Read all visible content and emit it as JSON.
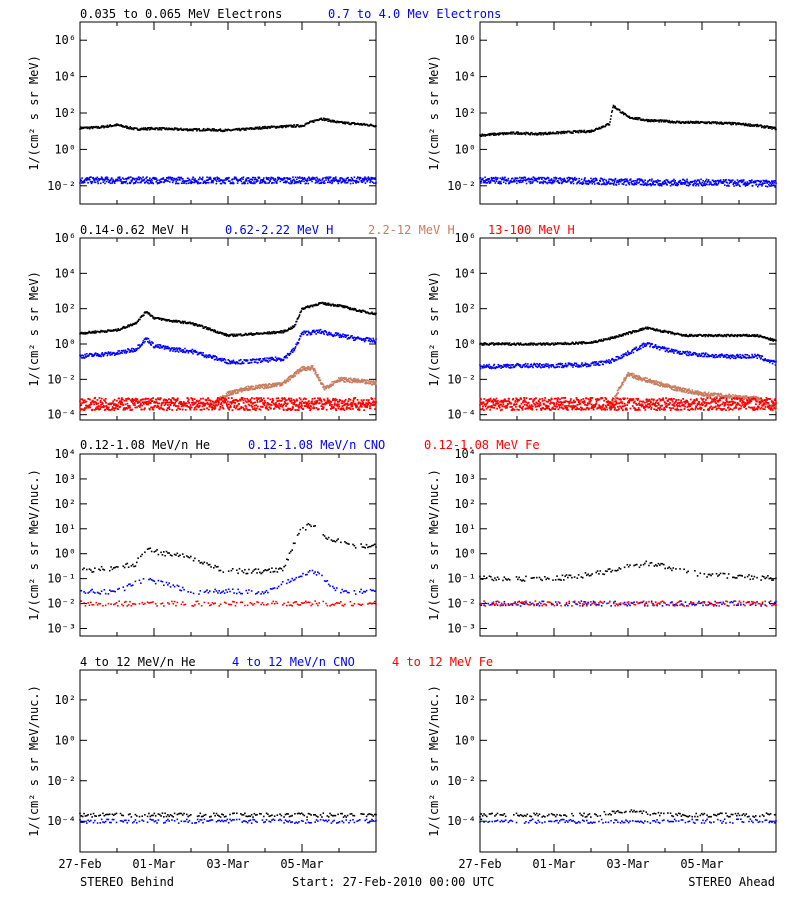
{
  "footer": {
    "left_tag": "STEREO Behind",
    "right_tag": "STEREO Ahead",
    "start": "Start: 27-Feb-2010 00:00 UTC"
  },
  "x_tick_labels": [
    "27-Feb",
    "01-Mar",
    "03-Mar",
    "05-Mar"
  ],
  "colors": {
    "black": "#000000",
    "blue": "#0000ff",
    "brown": "#c87d60",
    "red": "#ff0000",
    "background": "#ffffff"
  },
  "rows": [
    {
      "legend": [
        {
          "text": "0.035 to 0.065 MeV Electrons",
          "color": "#000000"
        },
        {
          "text": "0.7 to 4.0 Mev Electrons",
          "color": "#0000ff"
        }
      ],
      "ylabel": "1/(cm² s sr MeV)",
      "ticks": [
        {
          "exp": -2,
          "label": "10⁻²"
        },
        {
          "exp": 0,
          "label": "10⁰"
        },
        {
          "exp": 2,
          "label": "10²"
        },
        {
          "exp": 4,
          "label": "10⁴"
        },
        {
          "exp": 6,
          "label": "10⁶"
        }
      ]
    },
    {
      "legend": [
        {
          "text": "0.14-0.62 MeV H",
          "color": "#000000"
        },
        {
          "text": "0.62-2.22 MeV H",
          "color": "#0000ff"
        },
        {
          "text": "2.2-12 MeV H",
          "color": "#c87d60"
        },
        {
          "text": "13-100 MeV H",
          "color": "#ff0000"
        }
      ],
      "ylabel": "1/(cm² s sr MeV)",
      "ticks": [
        {
          "exp": -4,
          "label": "10⁻⁴"
        },
        {
          "exp": -2,
          "label": "10⁻²"
        },
        {
          "exp": 0,
          "label": "10⁰"
        },
        {
          "exp": 2,
          "label": "10²"
        },
        {
          "exp": 4,
          "label": "10⁴"
        },
        {
          "exp": 6,
          "label": "10⁶"
        }
      ]
    },
    {
      "legend": [
        {
          "text": "0.12-1.08 MeV/n He",
          "color": "#000000"
        },
        {
          "text": "0.12-1.08 MeV/n CNO",
          "color": "#0000ff"
        },
        {
          "text": "0.12-1.08 MeV Fe",
          "color": "#ff0000"
        }
      ],
      "ylabel": "1/(cm² s sr MeV/nuc.)",
      "ticks": [
        {
          "exp": -3,
          "label": "10⁻³"
        },
        {
          "exp": -2,
          "label": "10⁻²"
        },
        {
          "exp": -1,
          "label": "10⁻¹"
        },
        {
          "exp": 0,
          "label": "10⁰"
        },
        {
          "exp": 1,
          "label": "10¹"
        },
        {
          "exp": 2,
          "label": "10²"
        },
        {
          "exp": 3,
          "label": "10³"
        },
        {
          "exp": 4,
          "label": "10⁴"
        }
      ]
    },
    {
      "legend": [
        {
          "text": "4 to 12 MeV/n He",
          "color": "#000000"
        },
        {
          "text": "4 to 12 MeV/n CNO",
          "color": "#0000ff"
        },
        {
          "text": "4 to 12 MeV Fe",
          "color": "#ff0000"
        }
      ],
      "ylabel": "1/(cm² s sr MeV/nuc.)",
      "ticks": [
        {
          "exp": -4,
          "label": "10⁻⁴"
        },
        {
          "exp": -2,
          "label": "10⁻²"
        },
        {
          "exp": 0,
          "label": "10⁰"
        },
        {
          "exp": 2,
          "label": "10²"
        }
      ]
    }
  ],
  "chart_data": [
    {
      "type": "scatter",
      "spacecraft": "STEREO Behind",
      "y_scale": "log",
      "ylim": [
        0.001,
        10000000
      ],
      "x_unit": "days from 27-Feb-2010 00:00 UTC",
      "xlim": [
        0,
        8
      ],
      "series": [
        {
          "name": "0.035 to 0.065 MeV Electrons",
          "color": "#000000",
          "x": [
            0,
            0.5,
            1,
            1.5,
            2,
            2.5,
            3,
            3.5,
            4,
            4.5,
            5,
            5.5,
            6,
            6.5,
            7,
            7.5,
            8
          ],
          "y": [
            15,
            16,
            22,
            13,
            14,
            13,
            12,
            12,
            11,
            13,
            16,
            18,
            20,
            50,
            30,
            25,
            20
          ]
        },
        {
          "name": "0.7 to 4.0 Mev Electrons",
          "color": "#0000ff",
          "x": [
            0,
            1,
            2,
            3,
            4,
            5,
            6,
            7,
            8
          ],
          "y": [
            0.02,
            0.02,
            0.02,
            0.02,
            0.02,
            0.02,
            0.02,
            0.02,
            0.02
          ]
        }
      ]
    },
    {
      "type": "scatter",
      "spacecraft": "STEREO Ahead",
      "y_scale": "log",
      "ylim": [
        0.001,
        10000000
      ],
      "x_unit": "days from 27-Feb-2010 00:00 UTC",
      "xlim": [
        0,
        8
      ],
      "series": [
        {
          "name": "0.035 to 0.065 MeV Electrons",
          "color": "#000000",
          "x": [
            0,
            0.5,
            1,
            1.5,
            2,
            2.5,
            3,
            3.5,
            3.6,
            4,
            4.5,
            5,
            5.5,
            6,
            6.5,
            7,
            7.5,
            8
          ],
          "y": [
            6,
            7,
            8,
            7,
            8,
            9,
            10,
            25,
            250,
            60,
            40,
            35,
            30,
            30,
            28,
            25,
            20,
            14
          ]
        },
        {
          "name": "0.7 to 4.0 Mev Electrons",
          "color": "#0000ff",
          "x": [
            0,
            1,
            2,
            3,
            4,
            5,
            6,
            7,
            8
          ],
          "y": [
            0.02,
            0.02,
            0.02,
            0.018,
            0.016,
            0.015,
            0.015,
            0.014,
            0.013
          ]
        }
      ]
    },
    {
      "type": "scatter",
      "spacecraft": "STEREO Behind",
      "y_scale": "log",
      "ylim": [
        5e-05,
        1000000
      ],
      "x_unit": "days from 27-Feb-2010 00:00 UTC",
      "xlim": [
        0,
        8
      ],
      "series": [
        {
          "name": "0.14-0.62 MeV H",
          "color": "#000000",
          "x": [
            0,
            0.5,
            1,
            1.5,
            1.8,
            2,
            2.5,
            3,
            3.5,
            4,
            4.5,
            5,
            5.5,
            5.8,
            6,
            6.5,
            7,
            7.5,
            8
          ],
          "y": [
            4,
            5,
            6,
            15,
            70,
            30,
            20,
            15,
            7,
            3,
            3.5,
            4,
            5,
            10,
            100,
            200,
            150,
            80,
            50
          ]
        },
        {
          "name": "0.62-2.22 MeV H",
          "color": "#0000ff",
          "x": [
            0,
            0.5,
            1,
            1.5,
            1.8,
            2,
            2.5,
            3,
            3.5,
            4,
            4.5,
            5,
            5.5,
            5.8,
            6,
            6.5,
            7,
            7.5,
            8
          ],
          "y": [
            0.2,
            0.25,
            0.3,
            0.5,
            2,
            0.8,
            0.5,
            0.4,
            0.2,
            0.1,
            0.1,
            0.12,
            0.15,
            0.5,
            4,
            5,
            3,
            2,
            1.5
          ]
        },
        {
          "name": "2.2-12 MeV H",
          "color": "#c87d60",
          "x": [
            3.5,
            4,
            4.5,
            5,
            5.5,
            6,
            6.3,
            6.6,
            7,
            7.5,
            8
          ],
          "y": [
            0.0003,
            0.0015,
            0.003,
            0.004,
            0.006,
            0.04,
            0.045,
            0.003,
            0.01,
            0.008,
            0.006
          ]
        },
        {
          "name": "13-100 MeV H",
          "color": "#ff0000",
          "x": [
            0,
            2,
            4,
            6,
            8
          ],
          "y": [
            0.0004,
            0.0004,
            0.0004,
            0.0004,
            0.0004
          ]
        }
      ]
    },
    {
      "type": "scatter",
      "spacecraft": "STEREO Ahead",
      "y_scale": "log",
      "ylim": [
        5e-05,
        1000000
      ],
      "x_unit": "days from 27-Feb-2010 00:00 UTC",
      "xlim": [
        0,
        8
      ],
      "series": [
        {
          "name": "0.14-0.62 MeV H",
          "color": "#000000",
          "x": [
            0,
            1,
            2,
            3,
            3.5,
            4,
            4.5,
            5,
            5.5,
            6,
            6.5,
            7,
            7.5,
            8
          ],
          "y": [
            1,
            1,
            1,
            1.2,
            2,
            4,
            8,
            5,
            3,
            3,
            3,
            3,
            3,
            1.5
          ]
        },
        {
          "name": "0.62-2.22 MeV H",
          "color": "#0000ff",
          "x": [
            0,
            1,
            2,
            3,
            3.5,
            4,
            4.5,
            5,
            5.5,
            6,
            6.5,
            7,
            7.5,
            8
          ],
          "y": [
            0.05,
            0.06,
            0.06,
            0.07,
            0.1,
            0.3,
            1,
            0.5,
            0.3,
            0.25,
            0.2,
            0.2,
            0.2,
            0.08
          ]
        },
        {
          "name": "2.2-12 MeV H",
          "color": "#c87d60",
          "x": [
            3.5,
            3.8,
            4,
            4.3,
            4.8,
            5.3,
            6,
            6.5,
            7,
            7.5,
            8
          ],
          "y": [
            0.0002,
            0.004,
            0.02,
            0.012,
            0.006,
            0.003,
            0.0015,
            0.0012,
            0.001,
            0.0008,
            0.0002
          ]
        },
        {
          "name": "13-100 MeV H",
          "color": "#ff0000",
          "x": [
            0,
            2,
            4,
            6,
            8
          ],
          "y": [
            0.0004,
            0.0004,
            0.0004,
            0.0004,
            0.0004
          ]
        }
      ]
    },
    {
      "type": "scatter",
      "spacecraft": "STEREO Behind",
      "y_scale": "log",
      "ylim": [
        0.0005,
        10000
      ],
      "x_unit": "days from 27-Feb-2010 00:00 UTC",
      "xlim": [
        0,
        8
      ],
      "series": [
        {
          "name": "0.12-1.08 MeV/n He",
          "color": "#000000",
          "x": [
            0,
            0.5,
            1,
            1.5,
            1.8,
            2,
            2.5,
            3,
            3.5,
            4,
            4.5,
            5,
            5.5,
            5.8,
            6,
            6.3,
            6.6,
            7,
            7.5,
            8
          ],
          "y": [
            0.2,
            0.25,
            0.25,
            0.4,
            1.5,
            1.2,
            0.9,
            0.7,
            0.3,
            0.2,
            0.2,
            0.2,
            0.25,
            3,
            10,
            15,
            5,
            3,
            2,
            2
          ]
        },
        {
          "name": "0.12-1.08 MeV/n CNO",
          "color": "#0000ff",
          "x": [
            0,
            1,
            1.8,
            2,
            2.5,
            3,
            4,
            5,
            6,
            6.3,
            6.6,
            7,
            8
          ],
          "y": [
            0.03,
            0.03,
            0.1,
            0.08,
            0.05,
            0.03,
            0.03,
            0.03,
            0.15,
            0.2,
            0.1,
            0.03,
            0.03
          ]
        },
        {
          "name": "0.12-1.08 MeV Fe",
          "color": "#ff0000",
          "x": [
            0,
            2,
            4,
            6,
            8
          ],
          "y": [
            0.01,
            0.01,
            0.01,
            0.01,
            0.01
          ]
        }
      ]
    },
    {
      "type": "scatter",
      "spacecraft": "STEREO Ahead",
      "y_scale": "log",
      "ylim": [
        0.0005,
        10000
      ],
      "x_unit": "days from 27-Feb-2010 00:00 UTC",
      "xlim": [
        0,
        8
      ],
      "series": [
        {
          "name": "0.12-1.08 MeV/n He",
          "color": "#000000",
          "x": [
            0,
            1,
            2,
            3,
            3.5,
            4,
            4.5,
            5,
            5.5,
            6,
            7,
            8
          ],
          "y": [
            0.1,
            0.1,
            0.1,
            0.15,
            0.2,
            0.3,
            0.4,
            0.3,
            0.2,
            0.15,
            0.12,
            0.1
          ]
        },
        {
          "name": "0.12-1.08 MeV/n CNO",
          "color": "#0000ff",
          "x": [
            0,
            2,
            4,
            6,
            8
          ],
          "y": [
            0.01,
            0.01,
            0.01,
            0.01,
            0.01
          ]
        },
        {
          "name": "0.12-1.08 MeV Fe",
          "color": "#ff0000",
          "x": [
            0,
            2,
            4,
            6,
            8
          ],
          "y": [
            0.01,
            0.01,
            0.01,
            0.01,
            0.01
          ]
        }
      ]
    },
    {
      "type": "scatter",
      "spacecraft": "STEREO Behind",
      "y_scale": "log",
      "ylim": [
        3e-06,
        3000
      ],
      "x_unit": "days from 27-Feb-2010 00:00 UTC",
      "xlim": [
        0,
        8
      ],
      "series": [
        {
          "name": "4 to 12 MeV/n He",
          "color": "#000000",
          "x": [
            0,
            1,
            2,
            3,
            4,
            5,
            6,
            7,
            8
          ],
          "y": [
            0.0002,
            0.0002,
            0.0002,
            0.0002,
            0.0002,
            0.0002,
            0.0002,
            0.0002,
            0.0002
          ]
        },
        {
          "name": "4 to 12 MeV/n CNO",
          "color": "#0000ff",
          "x": [
            0,
            2,
            4,
            6,
            8
          ],
          "y": [
            0.0001,
            0.0001,
            0.0001,
            0.0001,
            0.0001
          ]
        },
        {
          "name": "4 to 12 MeV Fe",
          "color": "#ff0000",
          "x": [],
          "y": []
        }
      ]
    },
    {
      "type": "scatter",
      "spacecraft": "STEREO Ahead",
      "y_scale": "log",
      "ylim": [
        3e-06,
        3000
      ],
      "x_unit": "days from 27-Feb-2010 00:00 UTC",
      "xlim": [
        0,
        8
      ],
      "series": [
        {
          "name": "4 to 12 MeV/n He",
          "color": "#000000",
          "x": [
            0,
            1,
            2,
            3,
            3.5,
            4,
            4.5,
            5,
            6,
            7,
            8
          ],
          "y": [
            0.0002,
            0.0002,
            0.0002,
            0.0002,
            0.00025,
            0.0003,
            0.00025,
            0.0002,
            0.0002,
            0.0002,
            0.0002
          ]
        },
        {
          "name": "4 to 12 MeV/n CNO",
          "color": "#0000ff",
          "x": [
            0,
            2,
            4,
            6,
            8
          ],
          "y": [
            0.0001,
            0.0001,
            0.0001,
            0.0001,
            0.0001
          ]
        },
        {
          "name": "4 to 12 MeV Fe",
          "color": "#ff0000",
          "x": [],
          "y": []
        }
      ]
    }
  ]
}
